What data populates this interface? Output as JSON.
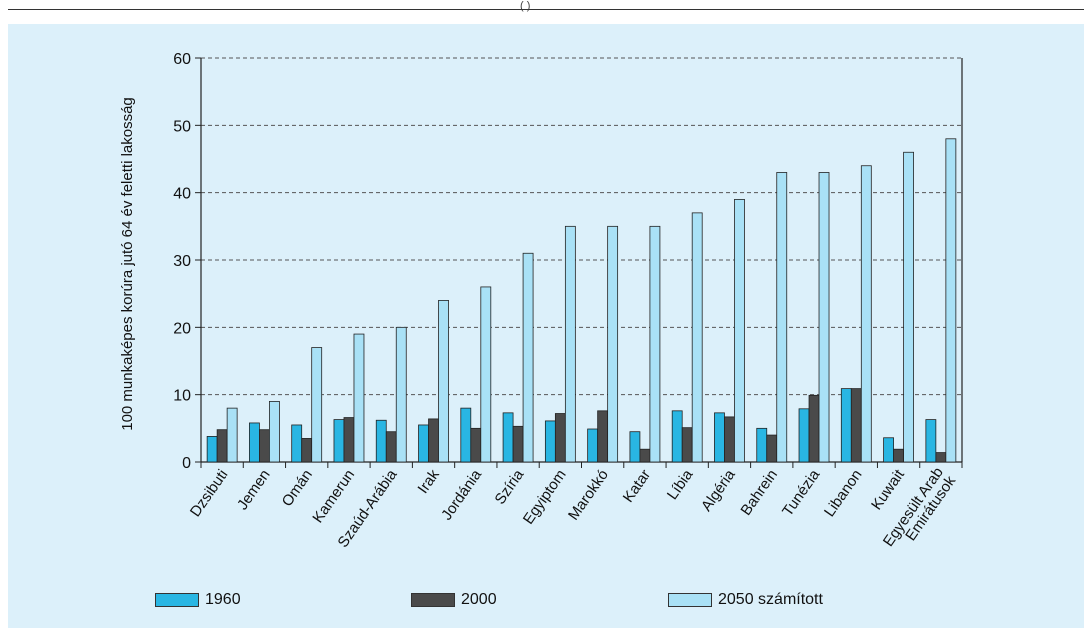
{
  "header_fragment": "(     )",
  "colors": {
    "background": "#dcf0fa",
    "s1960": "#29b6e3",
    "s2000": "#4a4a4a",
    "s2050": "#a9e1f6"
  },
  "legend": {
    "s1960": "1960",
    "s2000": "2000",
    "s2050": "2050 számított"
  },
  "chart_data": {
    "type": "bar",
    "ylabel": "100 munkaképes korúra jutó 64 év feletti lakosság",
    "ylim": [
      0,
      60
    ],
    "yticks": [
      0,
      10,
      20,
      30,
      40,
      50,
      60
    ],
    "grid": true,
    "categories": [
      [
        "Dzsibuti"
      ],
      [
        "Jemen"
      ],
      [
        "Omán"
      ],
      [
        "Kamerun"
      ],
      [
        "Szaúd-Arábia"
      ],
      [
        "Irak"
      ],
      [
        "Jordánia"
      ],
      [
        "Szíria"
      ],
      [
        "Egyiptom"
      ],
      [
        "Marokkó"
      ],
      [
        "Katar"
      ],
      [
        "Líbia"
      ],
      [
        "Algéria"
      ],
      [
        "Bahrein"
      ],
      [
        "Tunézia"
      ],
      [
        "Libanon"
      ],
      [
        "Kuwait"
      ],
      [
        "Egyesült Arab",
        "Emirátusok"
      ]
    ],
    "series": [
      {
        "name": "1960",
        "values": [
          3.8,
          5.8,
          5.5,
          6.3,
          6.2,
          5.5,
          8.0,
          7.3,
          6.1,
          4.9,
          4.5,
          7.6,
          7.3,
          5.0,
          7.9,
          10.9,
          3.6,
          6.3
        ]
      },
      {
        "name": "2000",
        "values": [
          4.8,
          4.8,
          3.5,
          6.6,
          4.5,
          6.4,
          5.0,
          5.3,
          7.2,
          7.6,
          1.9,
          5.1,
          6.7,
          4.0,
          9.9,
          10.9,
          1.9,
          1.4
        ]
      },
      {
        "name": "2050 számított",
        "values": [
          8,
          9,
          17,
          19,
          20,
          24,
          26,
          31,
          35,
          35,
          35,
          37,
          39,
          43,
          43,
          44,
          46,
          48
        ]
      }
    ]
  }
}
